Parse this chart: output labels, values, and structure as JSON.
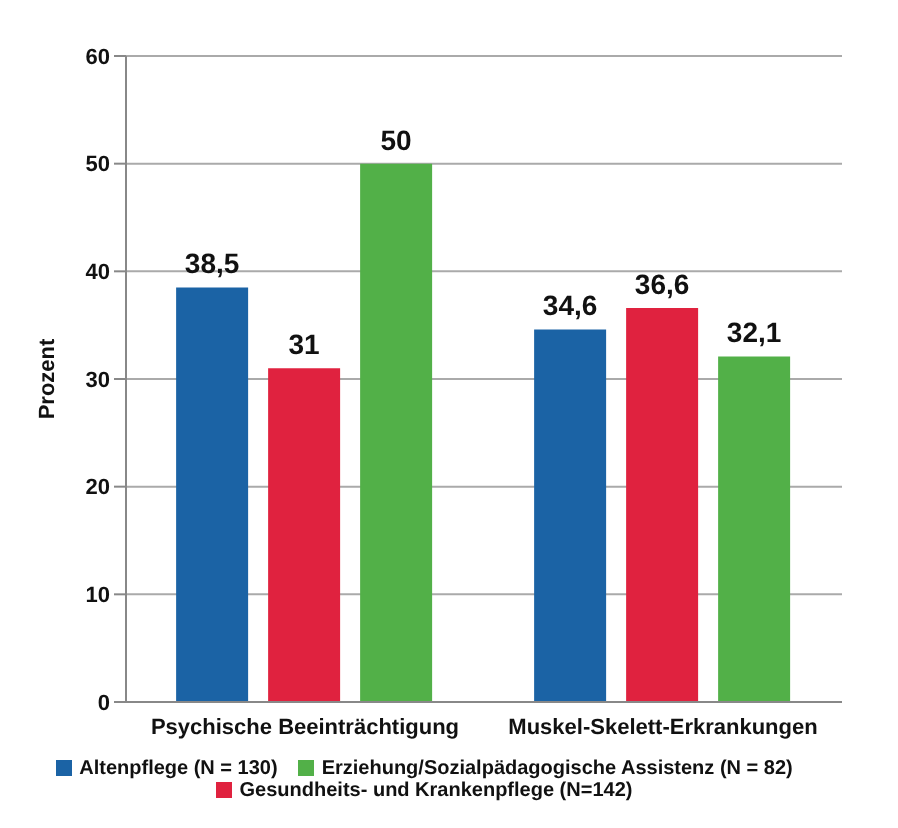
{
  "chart_data": {
    "type": "bar",
    "ylabel": "Prozent",
    "categories": [
      "Psychische Beeinträchtigung",
      "Muskel-Skelett-Erkrankungen"
    ],
    "series": [
      {
        "name": "Altenpflege (N = 130)",
        "color": "#1b63a5",
        "values": [
          38.5,
          34.6
        ],
        "value_labels": [
          "38,5",
          "34,6"
        ]
      },
      {
        "name": "Gesundheits- und Krankenpflege (N=142)",
        "color": "#e0223f",
        "values": [
          31,
          36.6
        ],
        "value_labels": [
          "31",
          "36,6"
        ]
      },
      {
        "name": "Erziehung/Sozialpädagogische Assistenz (N = 82)",
        "color": "#52b048",
        "values": [
          50,
          32.1
        ],
        "value_labels": [
          "50",
          "32,1"
        ]
      }
    ],
    "ylim": [
      0,
      60
    ],
    "yticks": [
      0,
      10,
      20,
      30,
      40,
      50,
      60
    ],
    "grid": "y",
    "legend": "bottom"
  }
}
